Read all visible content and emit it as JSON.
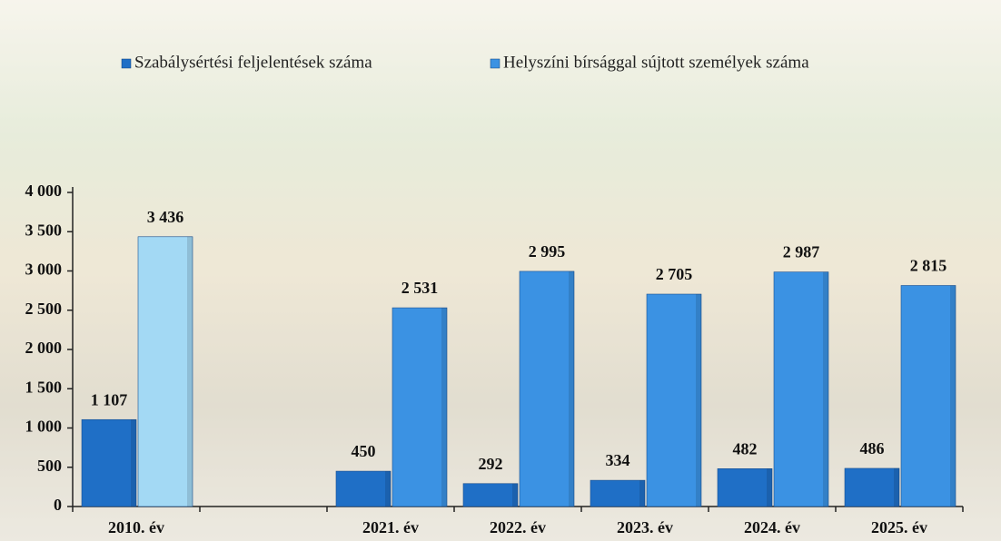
{
  "chart_data": {
    "type": "bar",
    "categories": [
      "2010. év",
      null,
      "2021. év",
      "2022. év",
      "2023. év",
      "2024. év",
      "2025. év"
    ],
    "series": [
      {
        "name": "Szabálysértési feljelentések száma",
        "color": "#1f6fc6",
        "values": [
          1107,
          null,
          450,
          292,
          334,
          482,
          486
        ],
        "value_labels": [
          "1 107",
          null,
          "450",
          "292",
          "334",
          "482",
          "486"
        ]
      },
      {
        "name": "Helyszíni bírsággal sújtott személyek száma",
        "color": "#3b92e3",
        "colors": [
          "#a3d9f4",
          null,
          "#3b92e3",
          "#3b92e3",
          "#3b92e3",
          "#3b92e3",
          "#3b92e3"
        ],
        "values": [
          3436,
          null,
          2531,
          2995,
          2705,
          2987,
          2815
        ],
        "value_labels": [
          "3 436",
          null,
          "2 531",
          "2 995",
          "2 705",
          "2 987",
          "2 815"
        ]
      }
    ],
    "ylim": [
      0,
      4000
    ],
    "yticks": [
      0,
      500,
      {
        "value": 1000,
        "label": "1 000"
      },
      {
        "value": 1500,
        "label": "1 500"
      },
      {
        "value": 2000,
        "label": "2 000"
      },
      {
        "value": 2500,
        "label": "2 500"
      },
      {
        "value": 3000,
        "label": "3 000"
      },
      {
        "value": 3500,
        "label": "3 500"
      },
      {
        "value": 4000,
        "label": "4 000"
      }
    ],
    "legend": "top"
  }
}
